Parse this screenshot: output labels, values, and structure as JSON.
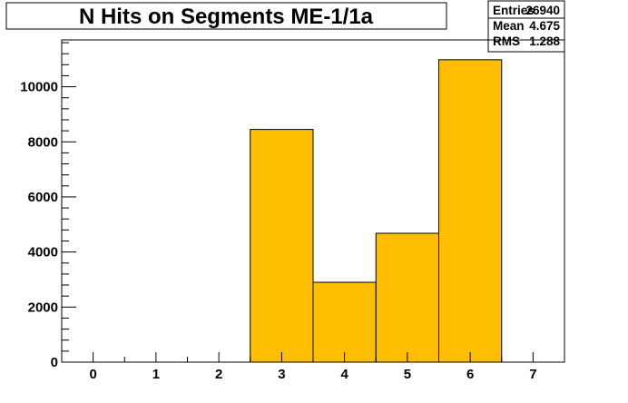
{
  "chart_data": {
    "type": "bar",
    "title": "N Hits on Segments ME-1/1a",
    "xlabel": "",
    "ylabel": "",
    "xlim": [
      -0.5,
      7.5
    ],
    "ylim": [
      0,
      11700
    ],
    "x_ticks": [
      0,
      1,
      2,
      3,
      4,
      5,
      6,
      7
    ],
    "y_ticks": [
      0,
      2000,
      4000,
      6000,
      8000,
      10000
    ],
    "bin_width": 1,
    "bins": [
      {
        "center": 3,
        "value": 8450
      },
      {
        "center": 4,
        "value": 2900
      },
      {
        "center": 5,
        "value": 4680
      },
      {
        "center": 6,
        "value": 10980
      }
    ],
    "grid": false,
    "bar_color": "#ffbf00",
    "stats": [
      {
        "label": "Entries",
        "value": "26940"
      },
      {
        "label": "Mean",
        "value": "4.675"
      },
      {
        "label": "RMS",
        "value": "1.288"
      }
    ]
  }
}
